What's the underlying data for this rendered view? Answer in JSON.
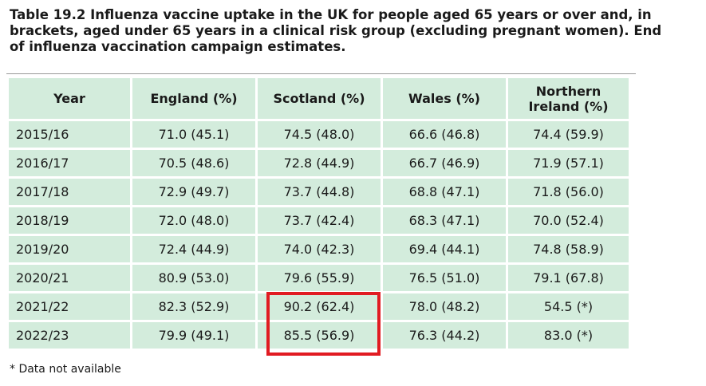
{
  "caption": "Table 19.2 Influenza vaccine uptake in the UK for people aged 65 years or over and, in brackets, aged under 65 years in a clinical risk group (excluding pregnant women). End of influenza vaccination campaign estimates.",
  "headers": {
    "year": "Year",
    "england": "England (%)",
    "scotland": "Scotland (%)",
    "wales": "Wales (%)",
    "ni_line1": "Northern",
    "ni_line2": "Ireland (%)"
  },
  "rows": [
    {
      "year": "2015/16",
      "england": "71.0 (45.1)",
      "scotland": "74.5 (48.0)",
      "wales": "66.6 (46.8)",
      "ni": "74.4 (59.9)"
    },
    {
      "year": "2016/17",
      "england": "70.5 (48.6)",
      "scotland": "72.8 (44.9)",
      "wales": "66.7 (46.9)",
      "ni": "71.9 (57.1)"
    },
    {
      "year": "2017/18",
      "england": "72.9 (49.7)",
      "scotland": "73.7 (44.8)",
      "wales": "68.8 (47.1)",
      "ni": "71.8 (56.0)"
    },
    {
      "year": "2018/19",
      "england": "72.0 (48.0)",
      "scotland": "73.7 (42.4)",
      "wales": "68.3 (47.1)",
      "ni": "70.0 (52.4)"
    },
    {
      "year": "2019/20",
      "england": "72.4 (44.9)",
      "scotland": "74.0 (42.3)",
      "wales": "69.4 (44.1)",
      "ni": "74.8 (58.9)"
    },
    {
      "year": "2020/21",
      "england": "80.9 (53.0)",
      "scotland": "79.6 (55.9)",
      "wales": "76.5 (51.0)",
      "ni": "79.1 (67.8)"
    },
    {
      "year": "2021/22",
      "england": "82.3 (52.9)",
      "scotland": "90.2 (62.4)",
      "wales": "78.0 (48.2)",
      "ni": "54.5 (*)"
    },
    {
      "year": "2022/23",
      "england": "79.9 (49.1)",
      "scotland": "85.5 (56.9)",
      "wales": "76.3 (44.2)",
      "ni": "83.0 (*)"
    }
  ],
  "highlight_color": "#e11b22",
  "cell_color": "#d3ecdc",
  "footnote": "* Data not available"
}
